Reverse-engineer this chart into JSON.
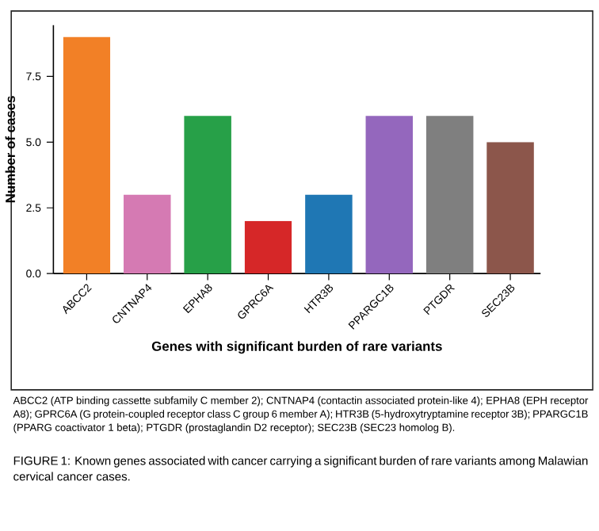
{
  "chart_data": {
    "type": "bar",
    "xlabel": "Genes with significant burden of rare variants",
    "ylabel": "Number of cases",
    "categories": [
      "ABCC2",
      "CNTNAP4",
      "EPHA8",
      "GPRC6A",
      "HTR3B",
      "PPARGC1B",
      "PTGDR",
      "SEC23B"
    ],
    "values": [
      9,
      3,
      6,
      2,
      3,
      6,
      6,
      5
    ],
    "colors": [
      "#f28026",
      "#d57ab3",
      "#27a048",
      "#d62728",
      "#1f77b4",
      "#9467bd",
      "#7f7f7f",
      "#8c564b"
    ],
    "ylim": [
      0,
      9.45
    ],
    "yticks": [
      {
        "value": 0,
        "label": "0.0"
      },
      {
        "value": 2.5,
        "label": "2.5"
      },
      {
        "value": 5,
        "label": "5.0"
      },
      {
        "value": 7.5,
        "label": "7.5"
      }
    ],
    "annotations": [
      "ABCC2 (ATP binding cassette subfamily C member 2); CNTNAP4 (contactin associated protein-like 4); EPHA8 (EPH receptor A8); GPRC6A (G protein-coupled receptor class C group 6 member A); HTR3B (5-hydroxytryptamine receptor 3B); PPARGC1B (PPARG coactivator 1 beta); PTGDR (prostaglandin D2 receptor); SEC23B (SEC23 homolog B).",
      "FIGURE 1: Known genes associated with cancer carrying a significant burden of rare variants among Malawian cervical cancer cases."
    ]
  }
}
